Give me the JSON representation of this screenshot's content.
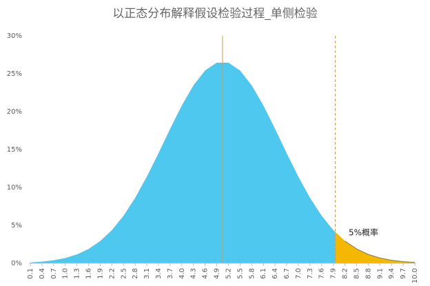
{
  "chart_data": {
    "type": "area",
    "title": "以正态分布解释假设检验过程_单侧检验",
    "annotation": "5%概率",
    "x": [
      0.1,
      0.4,
      0.7,
      1.0,
      1.3,
      1.6,
      1.9,
      2.2,
      2.5,
      2.8,
      3.1,
      3.4,
      3.7,
      4.0,
      4.3,
      4.6,
      4.9,
      5.2,
      5.5,
      5.8,
      6.1,
      6.4,
      6.7,
      7.0,
      7.3,
      7.6,
      7.9,
      8.2,
      8.5,
      8.8,
      9.1,
      9.4,
      9.7,
      10.0
    ],
    "series": [
      {
        "color": "#4fc8f0",
        "values": [
          0.11,
          0.22,
          0.4,
          0.69,
          1.17,
          1.89,
          2.93,
          4.38,
          6.27,
          8.64,
          11.43,
          14.52,
          17.74,
          20.82,
          23.47,
          25.43,
          26.47,
          26.47,
          25.43,
          23.47,
          20.82,
          17.74,
          14.52,
          11.43,
          8.64,
          6.27,
          4.38,
          2.93,
          1.89,
          1.17,
          0.69,
          0.4,
          0.22,
          0.11
        ]
      }
    ],
    "tail": {
      "from_x": 7.95,
      "color": "#f5b800"
    },
    "reference_lines": [
      {
        "x": 5.05,
        "color": "#c89a5a",
        "dashed": false
      },
      {
        "x": 7.95,
        "color": "#c89a5a",
        "dashed": true
      }
    ],
    "xlim": [
      0.1,
      10.0
    ],
    "xticks": [
      0.1,
      0.4,
      0.7,
      {
        "value": 1.0,
        "label": "1.0"
      },
      1.3,
      1.6,
      1.9,
      2.2,
      2.5,
      2.8,
      3.1,
      3.4,
      3.7,
      {
        "value": 4.0,
        "label": "4.0"
      },
      4.3,
      4.6,
      4.9,
      5.2,
      5.5,
      5.8,
      6.1,
      6.4,
      6.7,
      {
        "value": 7.0,
        "label": "7.0"
      },
      7.3,
      7.6,
      7.9,
      8.2,
      8.5,
      8.8,
      9.1,
      9.4,
      9.7,
      {
        "value": 10.0,
        "label": "10.0"
      }
    ],
    "ylim": [
      0,
      30
    ],
    "yticks": [
      {
        "value": 0,
        "label": "0%"
      },
      {
        "value": 5,
        "label": "5%"
      },
      {
        "value": 10,
        "label": "10%"
      },
      {
        "value": 15,
        "label": "15%"
      },
      {
        "value": 20,
        "label": "20%"
      },
      {
        "value": 25,
        "label": "25%"
      },
      {
        "value": 30,
        "label": "30%"
      }
    ],
    "grid": false
  }
}
